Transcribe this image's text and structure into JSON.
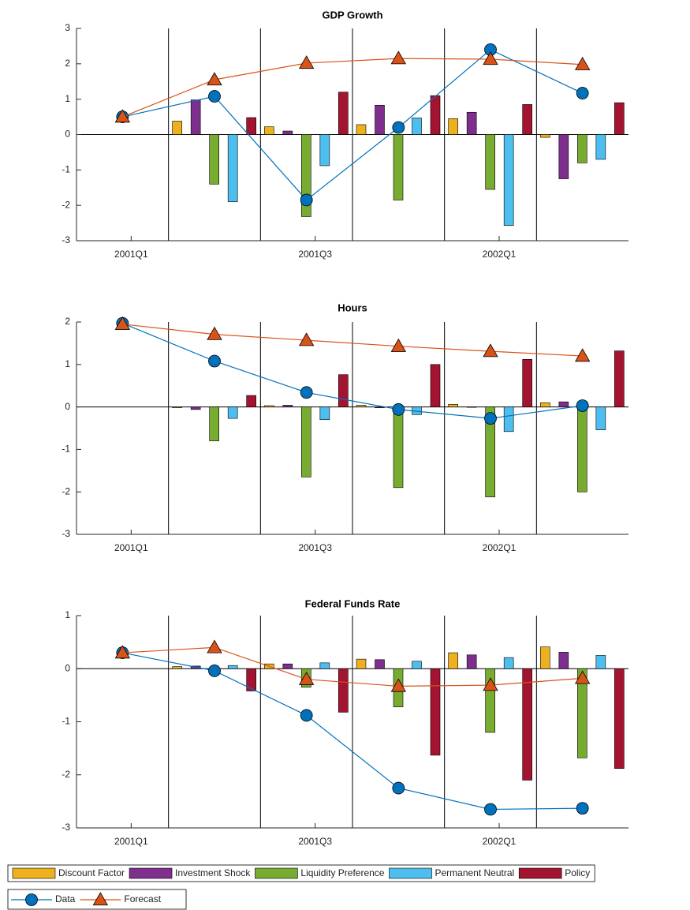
{
  "chart_data": [
    {
      "type": "combo",
      "title": "GDP Growth",
      "categories": [
        "2001Q1",
        null,
        "2001Q3",
        null,
        "2002Q1",
        null
      ],
      "ylim": [
        -3,
        3
      ],
      "yticks": [
        -3,
        -2,
        -1,
        0,
        1,
        2,
        3
      ],
      "series": [
        {
          "name": "Discount Factor",
          "type": "bar",
          "color": "#EDB120",
          "values": [
            null,
            0.38,
            0.22,
            0.28,
            0.45,
            -0.08
          ]
        },
        {
          "name": "Investment Shock",
          "type": "bar",
          "color": "#7E2F8E",
          "values": [
            null,
            0.98,
            0.1,
            0.83,
            0.63,
            -1.25
          ]
        },
        {
          "name": "Liquidity Preference",
          "type": "bar",
          "color": "#77AC30",
          "values": [
            null,
            -1.4,
            -2.32,
            -1.85,
            -1.55,
            -0.8
          ]
        },
        {
          "name": "Permanent Neutral",
          "type": "bar",
          "color": "#4DBEEE",
          "values": [
            null,
            -1.9,
            -0.88,
            0.47,
            -2.57,
            -0.7
          ]
        },
        {
          "name": "Policy",
          "type": "bar",
          "color": "#A2142F",
          "values": [
            null,
            0.48,
            1.2,
            1.1,
            0.85,
            0.9
          ]
        },
        {
          "name": "Data",
          "type": "line",
          "marker": "circle",
          "color": "#0072BD",
          "values": [
            0.5,
            1.08,
            -1.85,
            0.2,
            2.4,
            1.17
          ]
        },
        {
          "name": "Forecast",
          "type": "line",
          "marker": "triangle",
          "color": "#D95319",
          "values": [
            0.5,
            1.55,
            2.02,
            2.15,
            2.13,
            1.98
          ]
        }
      ]
    },
    {
      "type": "combo",
      "title": "Hours",
      "categories": [
        "2001Q1",
        null,
        "2001Q3",
        null,
        "2002Q1",
        null
      ],
      "ylim": [
        -3,
        2
      ],
      "yticks": [
        -3,
        -2,
        -1,
        0,
        1,
        2
      ],
      "series": [
        {
          "name": "Discount Factor",
          "type": "bar",
          "color": "#EDB120",
          "values": [
            null,
            -0.02,
            0.03,
            0.04,
            0.06,
            0.1
          ]
        },
        {
          "name": "Investment Shock",
          "type": "bar",
          "color": "#7E2F8E",
          "values": [
            null,
            -0.06,
            0.04,
            -0.02,
            -0.01,
            0.12
          ]
        },
        {
          "name": "Liquidity Preference",
          "type": "bar",
          "color": "#77AC30",
          "values": [
            null,
            -0.8,
            -1.65,
            -1.9,
            -2.12,
            -2.0
          ]
        },
        {
          "name": "Permanent Neutral",
          "type": "bar",
          "color": "#4DBEEE",
          "values": [
            null,
            -0.27,
            -0.3,
            -0.18,
            -0.58,
            -0.54
          ]
        },
        {
          "name": "Policy",
          "type": "bar",
          "color": "#A2142F",
          "values": [
            null,
            0.27,
            0.76,
            1.0,
            1.12,
            1.32
          ]
        },
        {
          "name": "Data",
          "type": "line",
          "marker": "circle",
          "color": "#0072BD",
          "values": [
            1.97,
            1.08,
            0.34,
            -0.06,
            -0.27,
            0.03
          ]
        },
        {
          "name": "Forecast",
          "type": "line",
          "marker": "triangle",
          "color": "#D95319",
          "values": [
            1.95,
            1.71,
            1.57,
            1.43,
            1.31,
            1.2
          ]
        }
      ]
    },
    {
      "type": "combo",
      "title": "Federal Funds Rate",
      "categories": [
        "2001Q1",
        null,
        "2001Q3",
        null,
        "2002Q1",
        null
      ],
      "ylim": [
        -3,
        1
      ],
      "yticks": [
        -3,
        -2,
        -1,
        0,
        1
      ],
      "series": [
        {
          "name": "Discount Factor",
          "type": "bar",
          "color": "#EDB120",
          "values": [
            null,
            0.04,
            0.09,
            0.18,
            0.3,
            0.41
          ]
        },
        {
          "name": "Investment Shock",
          "type": "bar",
          "color": "#7E2F8E",
          "values": [
            null,
            0.05,
            0.09,
            0.17,
            0.26,
            0.31
          ]
        },
        {
          "name": "Liquidity Preference",
          "type": "bar",
          "color": "#77AC30",
          "values": [
            null,
            -0.03,
            -0.35,
            -0.72,
            -1.2,
            -1.68
          ]
        },
        {
          "name": "Permanent Neutral",
          "type": "bar",
          "color": "#4DBEEE",
          "values": [
            null,
            0.06,
            0.11,
            0.14,
            0.21,
            0.25
          ]
        },
        {
          "name": "Policy",
          "type": "bar",
          "color": "#A2142F",
          "values": [
            null,
            -0.42,
            -0.82,
            -1.63,
            -2.1,
            -1.88
          ]
        },
        {
          "name": "Data",
          "type": "line",
          "marker": "circle",
          "color": "#0072BD",
          "values": [
            0.3,
            -0.04,
            -0.88,
            -2.25,
            -2.65,
            -2.63
          ]
        },
        {
          "name": "Forecast",
          "type": "line",
          "marker": "triangle",
          "color": "#D95319",
          "values": [
            0.3,
            0.4,
            -0.2,
            -0.33,
            -0.31,
            -0.18
          ]
        }
      ]
    }
  ]
}
